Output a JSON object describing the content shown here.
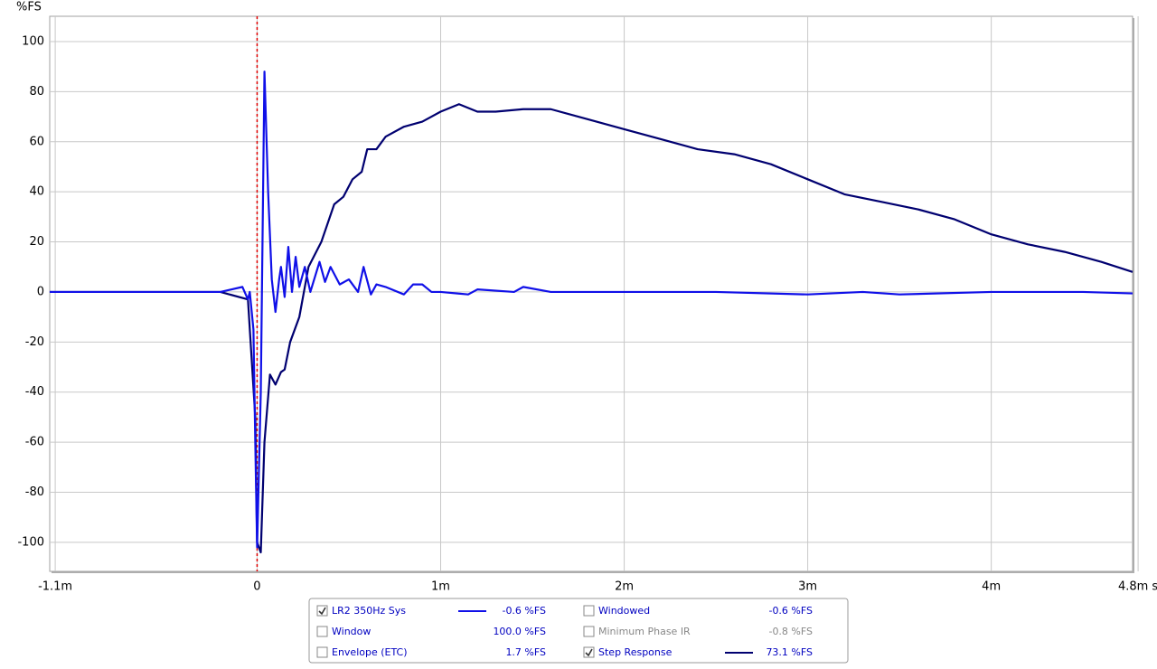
{
  "chart_data": {
    "type": "line",
    "y_label": "%FS",
    "xlim": [
      -1.13,
      4.77
    ],
    "ylim": [
      -111.6,
      110.1
    ],
    "xticks": [
      {
        "value": -1.1,
        "label": "-1.1m"
      },
      0,
      {
        "value": 1,
        "label": "1m"
      },
      {
        "value": 2,
        "label": "2m"
      },
      {
        "value": 3,
        "label": "3m"
      },
      {
        "value": 4,
        "label": "4m"
      },
      {
        "value": 4.8,
        "label": "4.8m s"
      }
    ],
    "yticks": [
      -100,
      -80,
      -60,
      -40,
      -20,
      0,
      20,
      40,
      60,
      80,
      100
    ],
    "grid": true,
    "cursor_color": "#e00000",
    "series": [
      {
        "name": "LR2 350Hz Sys",
        "color": "#1010e8",
        "readout": "-0.6 %FS",
        "checked": true,
        "x": [
          -1.13,
          -0.3,
          -0.2,
          -0.08,
          -0.05,
          -0.04,
          -0.02,
          -0.01,
          0.0,
          0.02,
          0.04,
          0.06,
          0.08,
          0.1,
          0.12,
          0.13,
          0.15,
          0.17,
          0.19,
          0.21,
          0.23,
          0.26,
          0.29,
          0.34,
          0.37,
          0.4,
          0.45,
          0.5,
          0.55,
          0.58,
          0.62,
          0.65,
          0.7,
          0.8,
          0.85,
          0.9,
          0.95,
          1.0,
          1.15,
          1.2,
          1.4,
          1.45,
          1.6,
          2.0,
          2.5,
          3.0,
          3.3,
          3.5,
          4.0,
          4.5,
          4.77
        ],
        "values": [
          0,
          0,
          0,
          2,
          -3,
          0,
          -15,
          -60,
          -102,
          -40,
          88,
          40,
          5,
          -8,
          5,
          10,
          -2,
          18,
          0,
          14,
          2,
          10,
          0,
          12,
          4,
          10,
          3,
          5,
          0,
          10,
          -1,
          3,
          2,
          -1,
          3,
          3,
          0,
          0,
          -1,
          1,
          0,
          2,
          0,
          0,
          0,
          -1,
          0,
          -1,
          0,
          0,
          -0.6
        ]
      },
      {
        "name": "Step Response",
        "color": "#000070",
        "readout": "73.1 %FS",
        "checked": true,
        "x": [
          -1.13,
          -0.2,
          -0.05,
          -0.01,
          0.0,
          0.02,
          0.04,
          0.07,
          0.1,
          0.13,
          0.15,
          0.18,
          0.23,
          0.28,
          0.35,
          0.42,
          0.47,
          0.52,
          0.57,
          0.6,
          0.65,
          0.7,
          0.8,
          0.9,
          1.0,
          1.1,
          1.2,
          1.3,
          1.45,
          1.6,
          1.8,
          2.0,
          2.2,
          2.4,
          2.6,
          2.8,
          3.0,
          3.2,
          3.4,
          3.6,
          3.8,
          4.0,
          4.2,
          4.4,
          4.6,
          4.77
        ],
        "values": [
          0,
          0,
          -3,
          -50,
          -100,
          -104,
          -60,
          -33,
          -37,
          -32,
          -31,
          -20,
          -10,
          10,
          20,
          35,
          38,
          45,
          48,
          57,
          57,
          62,
          66,
          68,
          72,
          75,
          72,
          72,
          73,
          73,
          69,
          65,
          61,
          57,
          55,
          51,
          45,
          39,
          36,
          33,
          29,
          23,
          19,
          16,
          12,
          8
        ]
      }
    ],
    "other_traces": [
      {
        "name": "Window",
        "readout": "100.0 %FS",
        "checked": false,
        "enabled": true
      },
      {
        "name": "Envelope (ETC)",
        "readout": "1.7 %FS",
        "checked": false,
        "enabled": true
      },
      {
        "name": "Windowed",
        "readout": "-0.6 %FS",
        "checked": false,
        "enabled": true
      },
      {
        "name": "Minimum Phase IR",
        "readout": "-0.8 %FS",
        "checked": false,
        "enabled": false
      }
    ]
  }
}
